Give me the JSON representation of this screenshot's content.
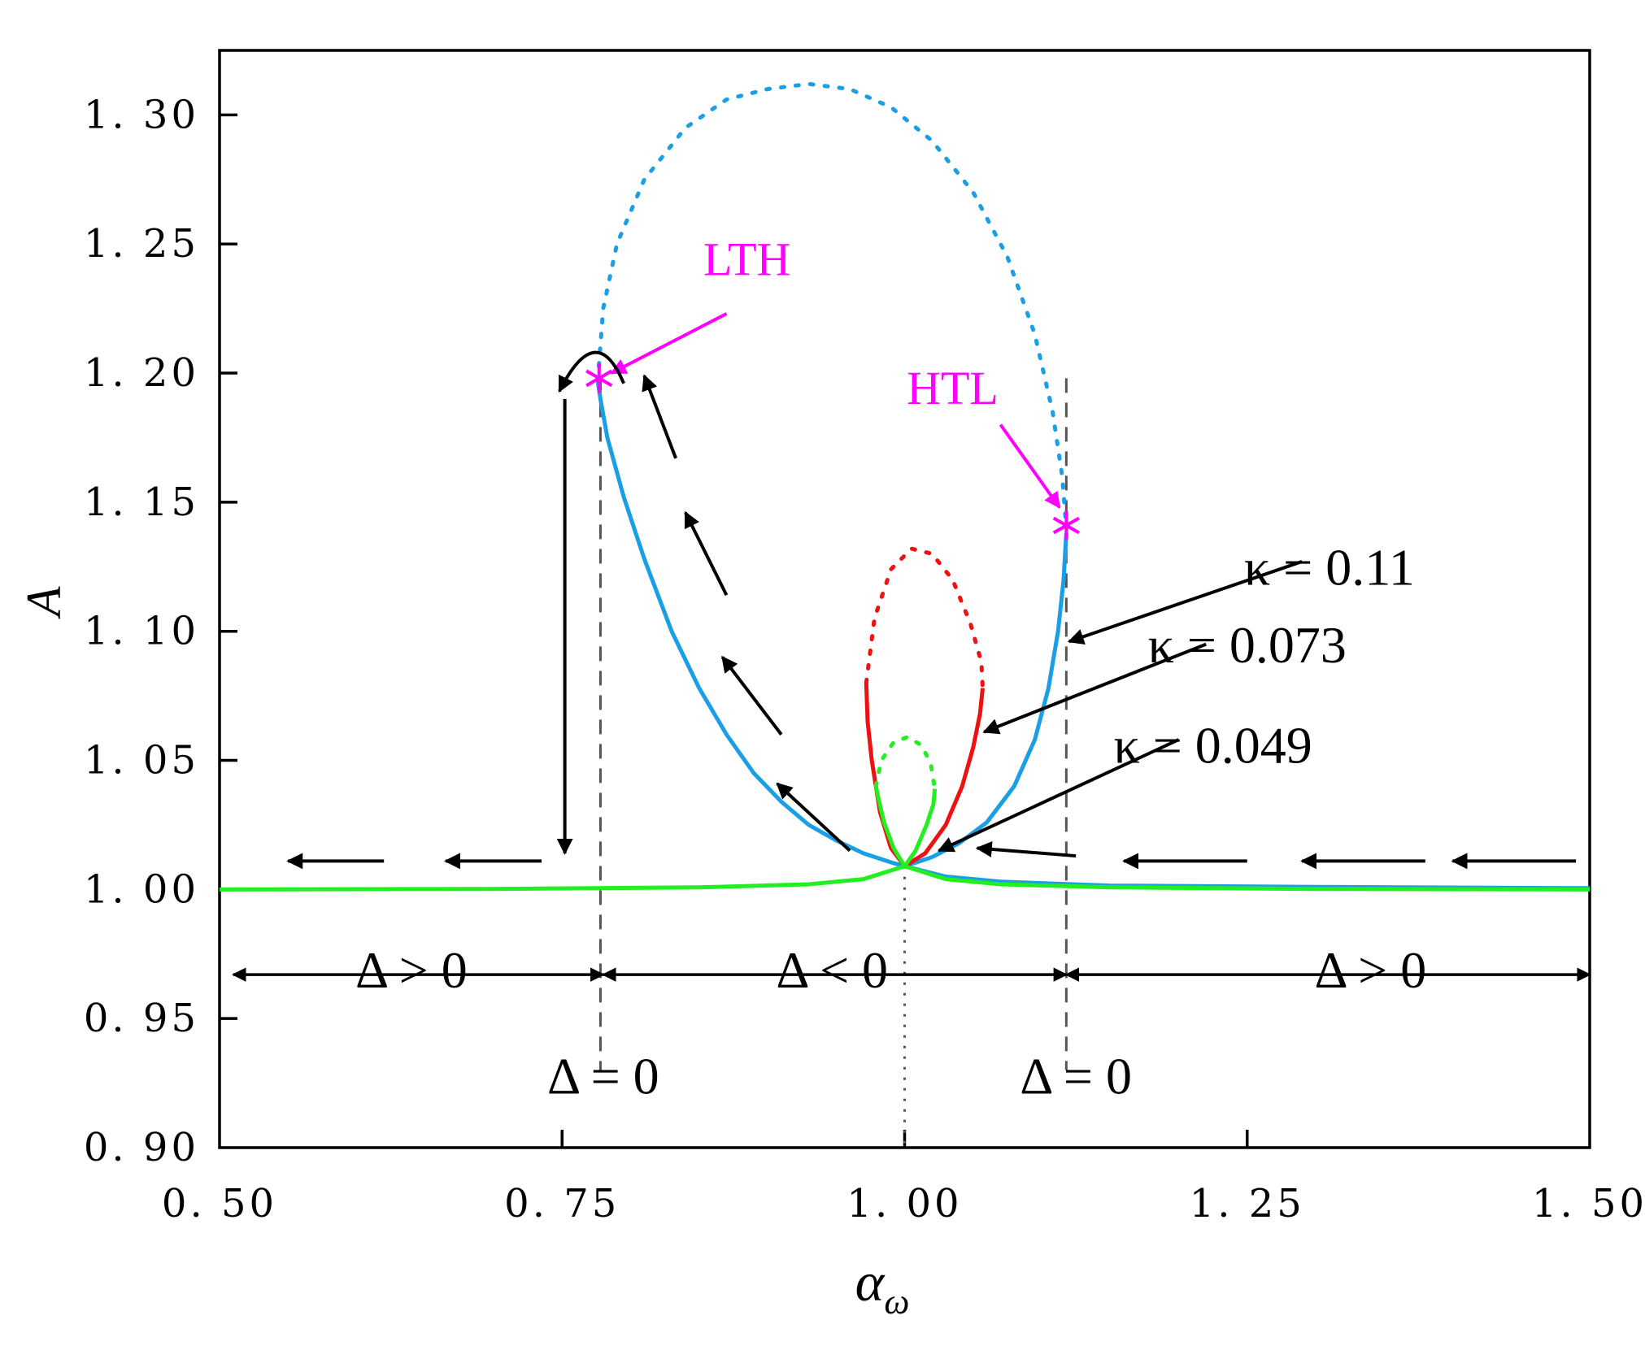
{
  "chart_data": {
    "type": "line",
    "title": "",
    "xlabel": "α",
    "xlabel_sub": "ω",
    "ylabel": "A",
    "xlim": [
      0.5,
      1.5
    ],
    "ylim": [
      0.9,
      1.325
    ],
    "x_ticks": [
      0.5,
      0.75,
      1.0,
      1.25,
      1.5
    ],
    "x_tick_labels": [
      "0. 50",
      "0. 75",
      "1. 00",
      "1. 25",
      "1. 50"
    ],
    "y_ticks": [
      0.9,
      0.95,
      1.0,
      1.05,
      1.1,
      1.15,
      1.2,
      1.25,
      1.3
    ],
    "y_tick_labels": [
      "0. 90",
      "0. 95",
      "1. 00",
      "1. 05",
      "1. 10",
      "1. 15",
      "1. 20",
      "1. 25",
      "1. 30"
    ],
    "grid": false,
    "series": [
      {
        "name": "κ = 0.11",
        "color": "#1a9fe6",
        "stable_left": [
          [
            1.0,
            1.009
          ],
          [
            0.99,
            1.0105
          ],
          [
            0.97,
            1.014
          ],
          [
            0.95,
            1.019
          ],
          [
            0.93,
            1.025
          ],
          [
            0.91,
            1.034
          ],
          [
            0.89,
            1.045
          ],
          [
            0.87,
            1.06
          ],
          [
            0.85,
            1.078
          ],
          [
            0.83,
            1.1
          ],
          [
            0.81,
            1.128
          ],
          [
            0.795,
            1.152
          ],
          [
            0.783,
            1.175
          ],
          [
            0.778,
            1.19
          ],
          [
            0.776,
            1.197
          ]
        ],
        "stable_right": [
          [
            1.0,
            1.009
          ],
          [
            1.02,
            1.0125
          ],
          [
            1.04,
            1.018
          ],
          [
            1.06,
            1.026
          ],
          [
            1.08,
            1.04
          ],
          [
            1.095,
            1.058
          ],
          [
            1.105,
            1.078
          ],
          [
            1.112,
            1.1
          ],
          [
            1.116,
            1.12
          ],
          [
            1.118,
            1.138
          ]
        ],
        "unstable": [
          [
            0.776,
            1.197
          ],
          [
            0.78,
            1.225
          ],
          [
            0.79,
            1.25
          ],
          [
            0.81,
            1.275
          ],
          [
            0.84,
            1.295
          ],
          [
            0.87,
            1.306
          ],
          [
            0.9,
            1.31
          ],
          [
            0.93,
            1.312
          ],
          [
            0.96,
            1.31
          ],
          [
            0.99,
            1.303
          ],
          [
            1.02,
            1.29
          ],
          [
            1.05,
            1.27
          ],
          [
            1.075,
            1.245
          ],
          [
            1.095,
            1.215
          ],
          [
            1.108,
            1.185
          ],
          [
            1.115,
            1.16
          ],
          [
            1.118,
            1.14
          ]
        ],
        "baseline": [
          [
            1.0,
            1.009
          ],
          [
            1.03,
            1.005
          ],
          [
            1.07,
            1.003
          ],
          [
            1.15,
            1.0015
          ],
          [
            1.3,
            1.001
          ],
          [
            1.5,
            1.0005
          ]
        ]
      },
      {
        "name": "κ = 0.073",
        "color": "#ee1111",
        "stable_left": [
          [
            1.0,
            1.009
          ],
          [
            0.99,
            1.016
          ],
          [
            0.982,
            1.03
          ],
          [
            0.976,
            1.05
          ],
          [
            0.973,
            1.065
          ],
          [
            0.972,
            1.08
          ]
        ],
        "stable_right": [
          [
            1.0,
            1.009
          ],
          [
            1.015,
            1.014
          ],
          [
            1.03,
            1.025
          ],
          [
            1.042,
            1.04
          ],
          [
            1.05,
            1.055
          ],
          [
            1.055,
            1.068
          ],
          [
            1.057,
            1.078
          ]
        ],
        "unstable": [
          [
            0.972,
            1.08
          ],
          [
            0.978,
            1.105
          ],
          [
            0.99,
            1.124
          ],
          [
            1.005,
            1.132
          ],
          [
            1.02,
            1.13
          ],
          [
            1.035,
            1.12
          ],
          [
            1.048,
            1.103
          ],
          [
            1.056,
            1.088
          ],
          [
            1.057,
            1.078
          ]
        ],
        "baseline": []
      },
      {
        "name": "κ = 0.049",
        "color": "#22ee22",
        "stable_left": [
          [
            1.0,
            1.009
          ],
          [
            0.992,
            1.016
          ],
          [
            0.985,
            1.026
          ],
          [
            0.981,
            1.035
          ],
          [
            0.979,
            1.04
          ]
        ],
        "stable_right": [
          [
            1.0,
            1.009
          ],
          [
            1.008,
            1.015
          ],
          [
            1.016,
            1.025
          ],
          [
            1.021,
            1.033
          ],
          [
            1.022,
            1.039
          ]
        ],
        "unstable": [
          [
            0.979,
            1.04
          ],
          [
            0.983,
            1.05
          ],
          [
            0.992,
            1.057
          ],
          [
            1.002,
            1.059
          ],
          [
            1.012,
            1.056
          ],
          [
            1.019,
            1.049
          ],
          [
            1.022,
            1.039
          ]
        ],
        "baseline": [
          [
            0.5,
            1.0
          ],
          [
            0.7,
            1.0002
          ],
          [
            0.85,
            1.0008
          ],
          [
            0.93,
            1.002
          ],
          [
            0.97,
            1.004
          ],
          [
            1.0,
            1.009
          ],
          [
            1.03,
            1.004
          ],
          [
            1.07,
            1.002
          ],
          [
            1.15,
            1.0008
          ],
          [
            1.3,
            1.0002
          ],
          [
            1.5,
            1.0
          ]
        ]
      }
    ],
    "bifurcation_points": [
      {
        "label": "LTH",
        "x": 0.777,
        "y": 1.198,
        "label_x": 0.885,
        "label_y": 1.238,
        "arrow_from": [
          0.87,
          1.223
        ],
        "arrow_to": [
          0.786,
          1.2
        ]
      },
      {
        "label": "HTL",
        "x": 1.118,
        "y": 1.141,
        "label_x": 1.035,
        "label_y": 1.188,
        "arrow_from": [
          1.07,
          1.18
        ],
        "arrow_to": [
          1.113,
          1.148
        ]
      }
    ],
    "annotations": {
      "kappa_labels": [
        {
          "text": "κ = 0.11",
          "x": 1.31,
          "y": 1.118,
          "arrow_from": [
            1.29,
            1.127
          ],
          "arrow_to": [
            1.12,
            1.096
          ]
        },
        {
          "text": "κ = 0.073",
          "x": 1.25,
          "y": 1.088,
          "arrow_from": [
            1.22,
            1.095
          ],
          "arrow_to": [
            1.058,
            1.061
          ]
        },
        {
          "text": "κ = 0.049",
          "x": 1.225,
          "y": 1.049,
          "arrow_from": [
            1.2,
            1.058
          ],
          "arrow_to": [
            1.025,
            1.015
          ]
        }
      ],
      "delta_regions": [
        {
          "text": "Δ > 0",
          "x": 0.64,
          "y": 0.962,
          "from": 0.51,
          "to": 0.78
        },
        {
          "text": "Δ < 0",
          "x": 0.947,
          "y": 0.962,
          "from": 0.78,
          "to": 1.118
        },
        {
          "text": "Δ > 0",
          "x": 1.34,
          "y": 0.962,
          "from": 1.118,
          "to": 1.5
        }
      ],
      "delta_zero_labels": [
        {
          "text": "Δ = 0",
          "x": 0.78,
          "y": 0.921
        },
        {
          "text": "Δ = 0",
          "x": 1.125,
          "y": 0.921
        }
      ],
      "dashed_verticals": [
        0.778,
        1.118
      ],
      "dotted_vertical": 1.0
    },
    "sweep_arrows": [
      {
        "from": [
          1.49,
          1.011
        ],
        "to": [
          1.4,
          1.011
        ]
      },
      {
        "from": [
          1.38,
          1.011
        ],
        "to": [
          1.29,
          1.011
        ]
      },
      {
        "from": [
          1.25,
          1.011
        ],
        "to": [
          1.16,
          1.011
        ]
      },
      {
        "from": [
          1.125,
          1.013
        ],
        "to": [
          1.053,
          1.016
        ]
      },
      {
        "from": [
          0.96,
          1.015
        ],
        "to": [
          0.907,
          1.041
        ]
      },
      {
        "from": [
          0.91,
          1.06
        ],
        "to": [
          0.867,
          1.09
        ]
      },
      {
        "from": [
          0.87,
          1.114
        ],
        "to": [
          0.84,
          1.146
        ]
      },
      {
        "from": [
          0.833,
          1.167
        ],
        "to": [
          0.81,
          1.199
        ]
      },
      {
        "from": [
          0.752,
          1.19
        ],
        "to": [
          0.752,
          1.014
        ]
      },
      {
        "from": [
          0.735,
          1.011
        ],
        "to": [
          0.665,
          1.011
        ]
      },
      {
        "from": [
          0.62,
          1.011
        ],
        "to": [
          0.55,
          1.011
        ]
      }
    ],
    "loop_arrow": {
      "from": [
        0.795,
        1.196
      ],
      "peak": [
        0.775,
        1.212
      ],
      "to": [
        0.748,
        1.193
      ]
    }
  }
}
